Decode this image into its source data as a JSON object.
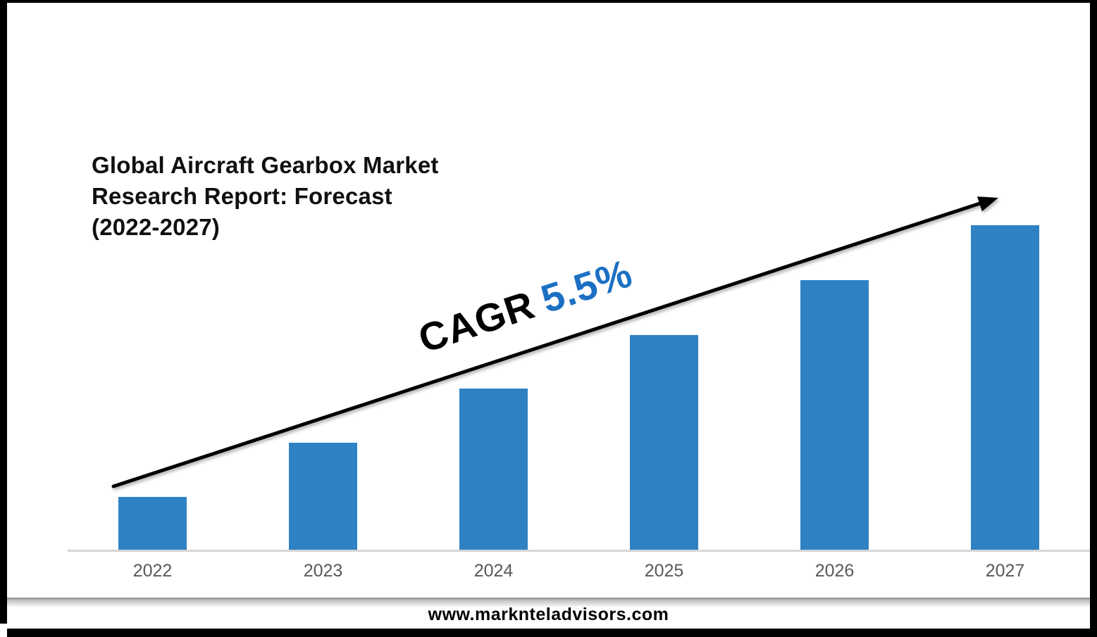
{
  "page": {
    "background": "#ffffff",
    "frame_color": "#000000"
  },
  "header": {
    "title": "Global Aircraft Gearbox Market Research Report: Forecast (2022-2027)",
    "title_lines": [
      "Global Aircraft Gearbox Market",
      "Research Report: Forecast",
      "(2022-2027)"
    ]
  },
  "annotation": {
    "prefix": "CAGR",
    "value": "5.5%",
    "prefix_color": "#000000",
    "value_color": "#1B70C4"
  },
  "footer": {
    "url": "www.marknteladvisors.com"
  },
  "chart_data": {
    "type": "bar",
    "title": "Global Aircraft Gearbox Market Research Report: Forecast (2022-2027)",
    "categories": [
      "2022",
      "2023",
      "2024",
      "2025",
      "2026",
      "2027"
    ],
    "values": [
      77,
      154,
      231,
      307,
      385,
      463
    ],
    "values_note": "bar heights in screen px; chart shows no y-axis scale, growth is linear (≈1:2:3:4:5:6)",
    "xlabel": "",
    "ylabel": "",
    "legend": false,
    "grid": false,
    "bar_color": "#2E82C4",
    "axis_color": "#D6D6D6",
    "tick_label_color": "#595959",
    "trend_arrow": {
      "shape": "straight-arrow-up-right",
      "color": "#000000",
      "label": "CAGR 5.5%"
    }
  }
}
